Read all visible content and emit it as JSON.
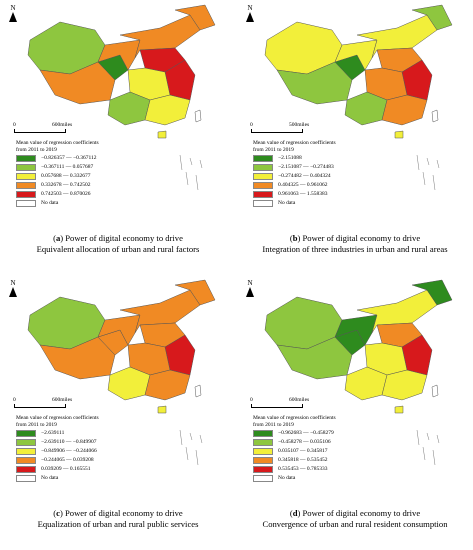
{
  "north_label": "N",
  "panels": [
    {
      "letter": "a",
      "caption_line1": " Power of digital economy to drive",
      "caption_line2": "Equivalent allocation of urban and rural factors",
      "scale_zero": "0",
      "scale_unit": "600miles",
      "legend_title_line1": "Mean value of regression coefficients",
      "legend_title_line2": "from 2011 to 2019",
      "legend": [
        {
          "label": "−0.826357 — −0.367112",
          "color": "#2e8b1e"
        },
        {
          "label": "−0.367111 — 0.057687",
          "color": "#8ec63f"
        },
        {
          "label": "0.057688 — 0.332677",
          "color": "#f2ef3a"
        },
        {
          "label": "0.332678 — 0.742502",
          "color": "#f08a24"
        },
        {
          "label": "0.742503 — 0.870026",
          "color": "#d7191c"
        },
        {
          "label": "No data",
          "color": "#ffffff"
        }
      ]
    },
    {
      "letter": "b",
      "caption_line1": " Power of digital economy to drive",
      "caption_line2": "Integration of three industries in urban and rural areas",
      "scale_zero": "0",
      "scale_unit": "500miles",
      "legend_title_line1": "Mean value of regression coefficients",
      "legend_title_line2": "from 2011 to 2019",
      "legend": [
        {
          "label": "−2.151088",
          "color": "#2e8b1e"
        },
        {
          "label": "−2.151087 — −0.274483",
          "color": "#8ec63f"
        },
        {
          "label": "−0.274482 — 0.404324",
          "color": "#f2ef3a"
        },
        {
          "label": "0.404325 — 0.961062",
          "color": "#f08a24"
        },
        {
          "label": "0.961063 — 1.558383",
          "color": "#d7191c"
        },
        {
          "label": "No data",
          "color": "#ffffff"
        }
      ]
    },
    {
      "letter": "c",
      "caption_line1": " Power of digital economy to drive",
      "caption_line2": "Equalization of urban and rural public services",
      "scale_zero": "0",
      "scale_unit": "600miles",
      "legend_title_line1": "Mean value of regression coefficients",
      "legend_title_line2": "from 2011 to 2019",
      "legend": [
        {
          "label": "−2.639111",
          "color": "#2e8b1e"
        },
        {
          "label": "−2.639110 — −0.849907",
          "color": "#8ec63f"
        },
        {
          "label": "−0.849906 — −0.244066",
          "color": "#f2ef3a"
        },
        {
          "label": "−0.244065 — 0.039208",
          "color": "#f08a24"
        },
        {
          "label": "0.039209 — 0.165551",
          "color": "#d7191c"
        },
        {
          "label": "No data",
          "color": "#ffffff"
        }
      ]
    },
    {
      "letter": "d",
      "caption_line1": " Power of digital economy to drive",
      "caption_line2": "Convergence of urban and rural resident consumption",
      "scale_zero": "0",
      "scale_unit": "600miles",
      "legend_title_line1": "Mean value of regression coefficients",
      "legend_title_line2": "from 2011 to 2019",
      "legend": [
        {
          "label": "−0.962683 — −0.458279",
          "color": "#2e8b1e"
        },
        {
          "label": "−0.458278 — 0.035106",
          "color": "#8ec63f"
        },
        {
          "label": "0.035107 — 0.345817",
          "color": "#f2ef3a"
        },
        {
          "label": "0.345818 — 0.535452",
          "color": "#f08a24"
        },
        {
          "label": "0.535453 — 0.785333",
          "color": "#d7191c"
        },
        {
          "label": "No data",
          "color": "#ffffff"
        }
      ]
    }
  ]
}
